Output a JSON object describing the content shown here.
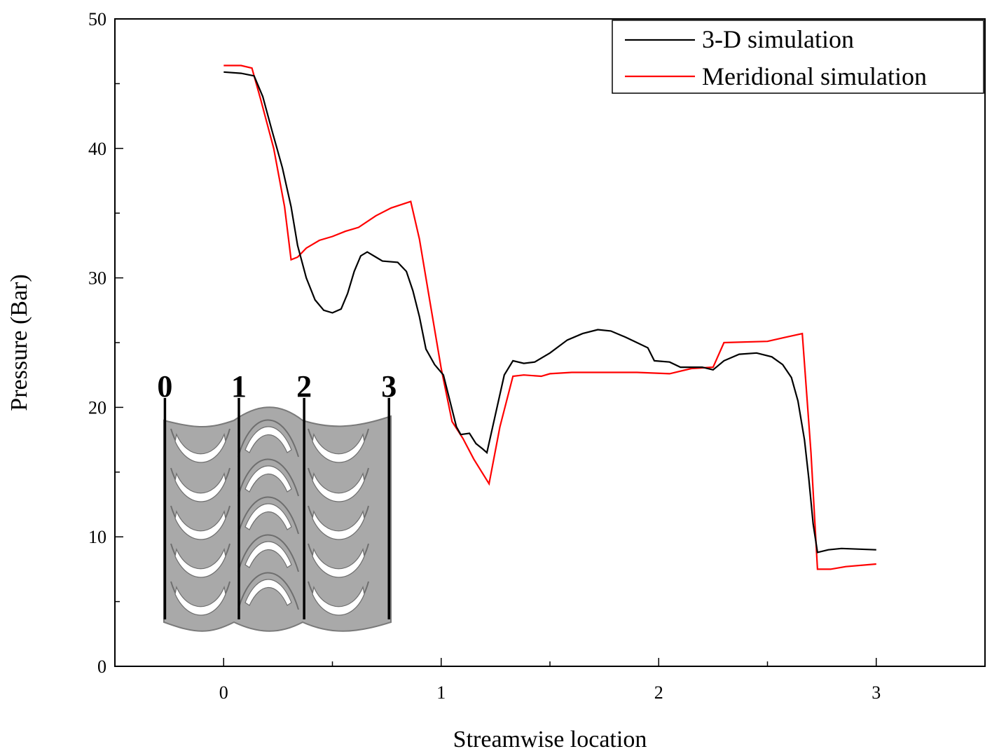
{
  "chart_data": {
    "type": "line",
    "xlabel": "Streamwise location",
    "ylabel": "Pressure (Bar)",
    "xlim": [
      -0.5,
      3.5
    ],
    "ylim": [
      0,
      50
    ],
    "x_ticks": [
      0,
      1,
      2,
      3
    ],
    "x_tick_labels": [
      "0",
      "1",
      "2",
      "3"
    ],
    "y_ticks": [
      0,
      10,
      20,
      30,
      40,
      50
    ],
    "y_tick_labels": [
      "0",
      "10",
      "20",
      "30",
      "40",
      "50"
    ],
    "legend_position": "top-right",
    "grid": false,
    "series": [
      {
        "name": "3-D simulation",
        "color": "#000000",
        "points": [
          [
            0.0,
            45.9
          ],
          [
            0.08,
            45.8
          ],
          [
            0.14,
            45.6
          ],
          [
            0.18,
            44.0
          ],
          [
            0.22,
            41.5
          ],
          [
            0.27,
            38.5
          ],
          [
            0.31,
            35.5
          ],
          [
            0.34,
            32.5
          ],
          [
            0.38,
            30.0
          ],
          [
            0.42,
            28.3
          ],
          [
            0.46,
            27.5
          ],
          [
            0.5,
            27.3
          ],
          [
            0.54,
            27.6
          ],
          [
            0.57,
            28.8
          ],
          [
            0.6,
            30.5
          ],
          [
            0.63,
            31.7
          ],
          [
            0.66,
            32.0
          ],
          [
            0.7,
            31.6
          ],
          [
            0.73,
            31.3
          ],
          [
            0.8,
            31.2
          ],
          [
            0.84,
            30.5
          ],
          [
            0.87,
            29.0
          ],
          [
            0.9,
            27.0
          ],
          [
            0.93,
            24.5
          ],
          [
            0.97,
            23.3
          ],
          [
            1.01,
            22.5
          ],
          [
            1.04,
            20.5
          ],
          [
            1.07,
            18.5
          ],
          [
            1.09,
            17.9
          ],
          [
            1.13,
            18.0
          ],
          [
            1.16,
            17.2
          ],
          [
            1.19,
            16.8
          ],
          [
            1.21,
            16.5
          ],
          [
            1.25,
            19.5
          ],
          [
            1.29,
            22.5
          ],
          [
            1.33,
            23.6
          ],
          [
            1.38,
            23.4
          ],
          [
            1.43,
            23.5
          ],
          [
            1.5,
            24.2
          ],
          [
            1.58,
            25.2
          ],
          [
            1.65,
            25.7
          ],
          [
            1.72,
            26.0
          ],
          [
            1.78,
            25.9
          ],
          [
            1.85,
            25.4
          ],
          [
            1.9,
            25.0
          ],
          [
            1.95,
            24.6
          ],
          [
            1.98,
            23.6
          ],
          [
            2.05,
            23.5
          ],
          [
            2.1,
            23.1
          ],
          [
            2.2,
            23.1
          ],
          [
            2.25,
            22.9
          ],
          [
            2.3,
            23.6
          ],
          [
            2.37,
            24.1
          ],
          [
            2.45,
            24.2
          ],
          [
            2.52,
            23.9
          ],
          [
            2.57,
            23.3
          ],
          [
            2.61,
            22.3
          ],
          [
            2.64,
            20.5
          ],
          [
            2.67,
            17.5
          ],
          [
            2.69,
            14.5
          ],
          [
            2.71,
            11.0
          ],
          [
            2.73,
            8.8
          ],
          [
            2.78,
            9.0
          ],
          [
            2.84,
            9.1
          ],
          [
            3.0,
            9.0
          ]
        ]
      },
      {
        "name": "Meridional simulation",
        "color": "#ff0000",
        "points": [
          [
            0.0,
            46.4
          ],
          [
            0.08,
            46.4
          ],
          [
            0.13,
            46.2
          ],
          [
            0.17,
            43.8
          ],
          [
            0.23,
            40.0
          ],
          [
            0.28,
            35.5
          ],
          [
            0.31,
            31.4
          ],
          [
            0.34,
            31.6
          ],
          [
            0.38,
            32.3
          ],
          [
            0.44,
            32.9
          ],
          [
            0.5,
            33.2
          ],
          [
            0.56,
            33.6
          ],
          [
            0.62,
            33.9
          ],
          [
            0.7,
            34.8
          ],
          [
            0.77,
            35.4
          ],
          [
            0.86,
            35.9
          ],
          [
            0.9,
            33.0
          ],
          [
            0.95,
            28.0
          ],
          [
            1.0,
            23.0
          ],
          [
            1.05,
            18.9
          ],
          [
            1.1,
            17.6
          ],
          [
            1.15,
            16.0
          ],
          [
            1.22,
            14.1
          ],
          [
            1.27,
            18.5
          ],
          [
            1.33,
            22.4
          ],
          [
            1.38,
            22.5
          ],
          [
            1.46,
            22.4
          ],
          [
            1.5,
            22.6
          ],
          [
            1.6,
            22.7
          ],
          [
            1.8,
            22.7
          ],
          [
            1.9,
            22.7
          ],
          [
            2.05,
            22.6
          ],
          [
            2.15,
            23.0
          ],
          [
            2.25,
            23.1
          ],
          [
            2.3,
            25.0
          ],
          [
            2.5,
            25.1
          ],
          [
            2.58,
            25.4
          ],
          [
            2.66,
            25.7
          ],
          [
            2.7,
            16.5
          ],
          [
            2.73,
            7.5
          ],
          [
            2.79,
            7.5
          ],
          [
            2.86,
            7.7
          ],
          [
            3.0,
            7.9
          ]
        ]
      }
    ],
    "inset_station_labels": [
      "0",
      "1",
      "2",
      "3"
    ],
    "inset_station_x": [
      -0.27,
      0.07,
      0.37,
      0.76
    ]
  }
}
